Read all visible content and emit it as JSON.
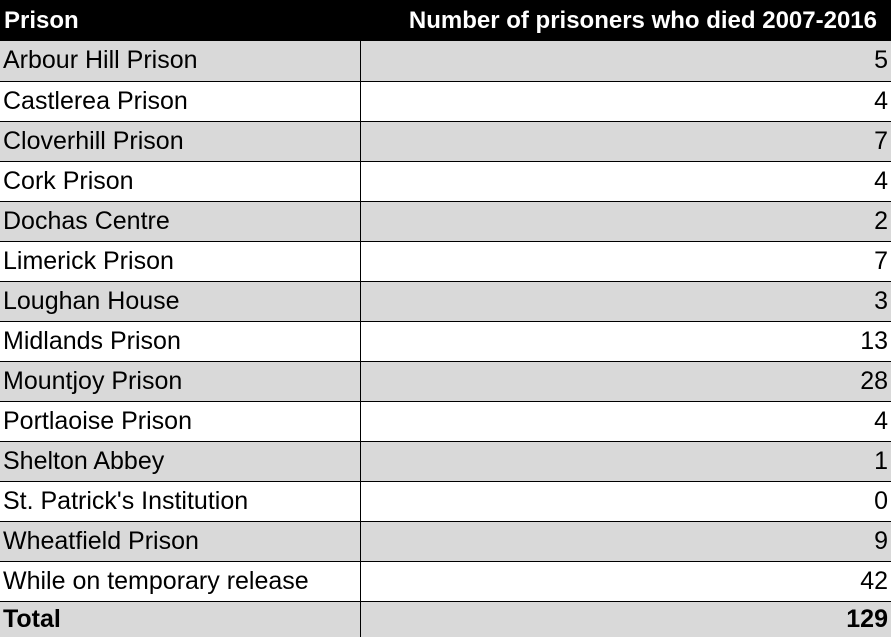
{
  "chart_data": {
    "type": "table",
    "columns": [
      "Prison",
      "Number of prisoners who died 2007-2016"
    ],
    "rows": [
      {
        "name": "Arbour Hill Prison",
        "value": "5"
      },
      {
        "name": "Castlerea Prison",
        "value": "4"
      },
      {
        "name": "Cloverhill Prison",
        "value": "7"
      },
      {
        "name": "Cork Prison",
        "value": "4"
      },
      {
        "name": "Dochas Centre",
        "value": "2"
      },
      {
        "name": "Limerick Prison",
        "value": "7"
      },
      {
        "name": "Loughan House",
        "value": "3"
      },
      {
        "name": "Midlands Prison",
        "value": "13"
      },
      {
        "name": "Mountjoy Prison",
        "value": "28"
      },
      {
        "name": "Portlaoise Prison",
        "value": "4"
      },
      {
        "name": "Shelton Abbey",
        "value": "1"
      },
      {
        "name": "St. Patrick's Institution",
        "value": "0"
      },
      {
        "name": "Wheatfield Prison",
        "value": "9"
      },
      {
        "name": "While on temporary release",
        "value": "42"
      }
    ],
    "total": {
      "name": "Total",
      "value": "129"
    }
  },
  "colors": {
    "header_bg": "#000000",
    "header_text": "#ffffff",
    "shaded_row": "#d9d9d9",
    "white_row": "#ffffff"
  }
}
